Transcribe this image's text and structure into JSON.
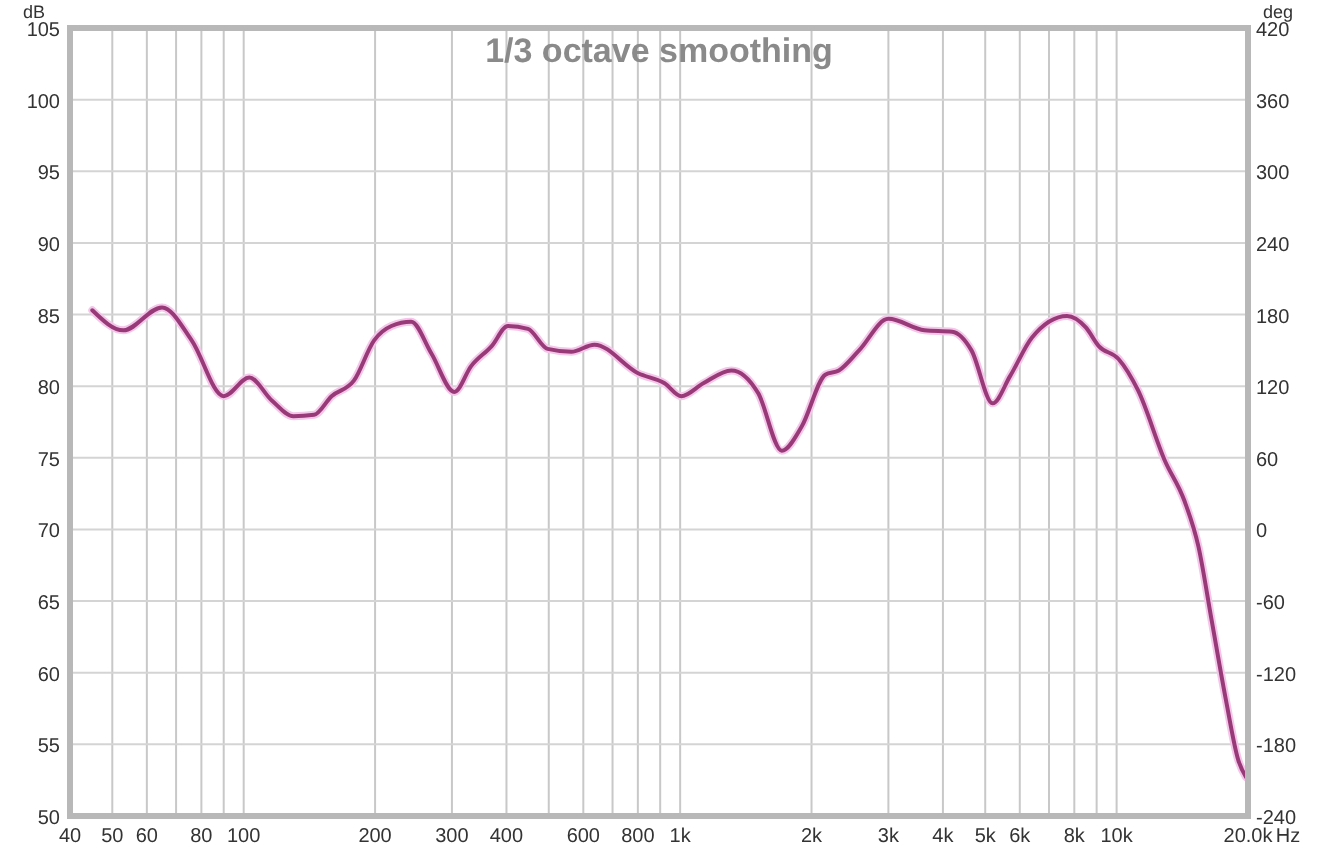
{
  "chart_data": {
    "type": "line",
    "title": "1/3 octave smoothing",
    "ylabel": "dB",
    "y2label": "deg",
    "xlabel": "Hz",
    "log": "x",
    "grid": true,
    "marker": "none",
    "line_style": "solid",
    "xlim": [
      40,
      20000
    ],
    "xticks": [
      40,
      50,
      60,
      {
        "value": 70,
        "label": null
      },
      80,
      {
        "value": 90,
        "label": null
      },
      100,
      200,
      300,
      400,
      {
        "value": 500,
        "label": null
      },
      600,
      {
        "value": 700,
        "label": null
      },
      800,
      {
        "value": 900,
        "label": null
      },
      {
        "value": 1000,
        "label": "1k"
      },
      {
        "value": 2000,
        "label": "2k"
      },
      {
        "value": 3000,
        "label": "3k"
      },
      {
        "value": 4000,
        "label": "4k"
      },
      {
        "value": 5000,
        "label": "5k"
      },
      {
        "value": 6000,
        "label": "6k"
      },
      {
        "value": 7000,
        "label": null
      },
      {
        "value": 8000,
        "label": "8k"
      },
      {
        "value": 9000,
        "label": null
      },
      {
        "value": 10000,
        "label": "10k"
      },
      {
        "value": 20000,
        "label": "20.0k"
      }
    ],
    "ylim": [
      50,
      105
    ],
    "yticks": [
      50,
      55,
      60,
      65,
      70,
      75,
      80,
      85,
      90,
      95,
      100,
      105
    ],
    "y2lim": [
      -240,
      420
    ],
    "y2ticks": [
      -240,
      -180,
      -120,
      -60,
      0,
      60,
      120,
      180,
      240,
      300,
      360,
      420
    ],
    "series": [
      {
        "color": "#993a78",
        "x": [
          45,
          53,
          65,
          76,
          90,
          103,
          116,
          130,
          145,
          159,
          179,
          199,
          218,
          242,
          269,
          304,
          332,
          370,
          403,
          448,
          497,
          563,
          636,
          801,
          921,
          1006,
          1130,
          1310,
          1510,
          1710,
          1900,
          2150,
          2310,
          2570,
          3000,
          3630,
          4200,
          4650,
          5200,
          5700,
          6400,
          7700,
          8500,
          9100,
          10100,
          11200,
          12900,
          14300,
          15400,
          16500,
          17800,
          19000,
          19800
        ],
        "values": [
          85.3,
          83.9,
          85.5,
          83.2,
          79.3,
          80.6,
          79.0,
          77.9,
          78.0,
          79.3,
          80.4,
          83.2,
          84.2,
          84.5,
          82.3,
          79.6,
          81.4,
          82.8,
          84.2,
          84.0,
          82.6,
          82.4,
          82.9,
          80.9,
          80.2,
          79.3,
          80.2,
          81.1,
          79.5,
          75.5,
          77.2,
          80.8,
          81.1,
          82.5,
          84.7,
          83.9,
          83.8,
          82.5,
          78.8,
          80.7,
          83.4,
          84.9,
          84.1,
          82.8,
          81.9,
          79.7,
          74.8,
          72.0,
          68.8,
          63.7,
          58.1,
          53.9,
          52.7
        ]
      }
    ]
  }
}
